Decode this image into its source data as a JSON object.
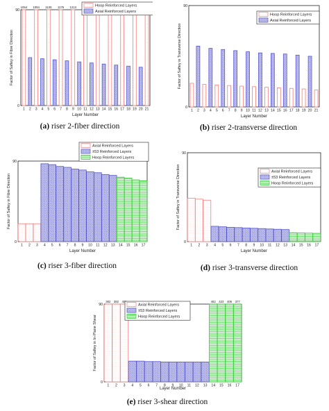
{
  "colors": {
    "hoop": "#f08080",
    "axial": "#5555cc",
    "pm53": "#5555cc",
    "hoop_green": "#33cc33",
    "axis": "#222222"
  },
  "chart_data": [
    {
      "id": "a",
      "type": "bar",
      "caption_letter": "(a)",
      "caption_text": " riser 2-fiber direction",
      "ylabel": "Factor of Saftey in Fibre Direction",
      "xlabel": "Layer Number",
      "ylim": [
        0,
        90
      ],
      "yticks": [
        0,
        90
      ],
      "categories": [
        "1",
        "2",
        "3",
        "4",
        "5",
        "6",
        "7",
        "8",
        "9",
        "10",
        "11",
        "12",
        "13",
        "14",
        "15",
        "16",
        "17",
        "18",
        "19",
        "20",
        "21"
      ],
      "values": [
        1054,
        45,
        1094,
        44,
        1135,
        43,
        1175,
        42,
        1213,
        41,
        1080,
        40,
        856,
        39,
        700,
        38,
        586,
        37,
        497,
        36,
        426
      ],
      "value_labels": [
        "1054",
        "",
        "1094",
        "",
        "1135",
        "",
        "1175",
        "",
        "1213",
        "",
        "1080",
        "",
        "856",
        "",
        "700",
        "",
        "586",
        "",
        "497",
        "",
        "426"
      ],
      "series_groups": [
        1,
        2,
        1,
        2,
        1,
        2,
        1,
        2,
        1,
        2,
        1,
        2,
        1,
        2,
        1,
        2,
        1,
        2,
        1,
        2,
        1
      ],
      "legend": [
        "Hoop Reinforced Layers",
        "Axial Reinforced Layers"
      ],
      "legend_styles": [
        "hoop",
        "axial"
      ],
      "legend_position": "top-right"
    },
    {
      "id": "b",
      "type": "bar",
      "caption_letter": "(b)",
      "caption_text": " riser 2-transverse direction",
      "ylabel": "Factor of Saftey in Transverse Direction",
      "xlabel": "Layer Number",
      "ylim": [
        0,
        90
      ],
      "yticks": [
        0,
        90
      ],
      "categories": [
        "1",
        "2",
        "3",
        "4",
        "5",
        "6",
        "7",
        "8",
        "9",
        "10",
        "11",
        "12",
        "13",
        "14",
        "15",
        "16",
        "17",
        "18",
        "19",
        "20",
        "21"
      ],
      "values": [
        21,
        54,
        20,
        52,
        19.5,
        51,
        19,
        50,
        18.5,
        49,
        18,
        48,
        17.5,
        47.5,
        17,
        47,
        16.5,
        46,
        16,
        45,
        15
      ],
      "series_groups": [
        1,
        2,
        1,
        2,
        1,
        2,
        1,
        2,
        1,
        2,
        1,
        2,
        1,
        2,
        1,
        2,
        1,
        2,
        1,
        2,
        1
      ],
      "legend": [
        "Hoop Reinforced Layers",
        "Axial Reinforced Layers"
      ],
      "legend_styles": [
        "hoop",
        "axial"
      ],
      "legend_position": "top-right"
    },
    {
      "id": "c",
      "type": "bar",
      "caption_letter": "(c)",
      "caption_text": " riser 3-fiber direction",
      "ylabel": "Factor of Saftey in Fibre Direction",
      "xlabel": "Layer Number",
      "ylim": [
        0,
        90
      ],
      "yticks": [
        0,
        90
      ],
      "categories": [
        "1",
        "2",
        "3",
        "4",
        "5",
        "6",
        "7",
        "8",
        "9",
        "10",
        "11",
        "12",
        "13",
        "14",
        "15",
        "16",
        "17"
      ],
      "values": [
        20,
        20,
        20,
        87,
        86,
        84,
        83,
        81,
        80,
        78,
        77,
        75,
        74,
        72,
        71,
        69,
        68
      ],
      "series_groups": [
        1,
        1,
        1,
        2,
        2,
        2,
        2,
        2,
        2,
        2,
        2,
        2,
        2,
        3,
        3,
        3,
        3
      ],
      "legend": [
        "Axial Reinforced Layers",
        "±53  Reinforced Layers",
        "Hoop Reinforced Layers"
      ],
      "legend_styles": [
        "hoop",
        "pm53",
        "hoop_green"
      ],
      "legend_position": "top-right"
    },
    {
      "id": "d",
      "type": "bar",
      "caption_letter": "(d)",
      "caption_text": " riser 3-transverse direction",
      "ylabel": "Factor of Saftey in Transverse Direction",
      "xlabel": "Layer Number",
      "ylim": [
        0,
        90
      ],
      "yticks": [
        0,
        90
      ],
      "categories": [
        "1",
        "2",
        "3",
        "4",
        "5",
        "6",
        "7",
        "8",
        "9",
        "10",
        "11",
        "12",
        "13",
        "14",
        "15",
        "16",
        "17"
      ],
      "values": [
        44,
        43,
        42,
        15.5,
        15,
        14.5,
        14.2,
        13.8,
        13.5,
        13.2,
        12.8,
        12.5,
        12.2,
        9,
        8.8,
        8.6,
        8.4
      ],
      "series_groups": [
        1,
        1,
        1,
        2,
        2,
        2,
        2,
        2,
        2,
        2,
        2,
        2,
        2,
        3,
        3,
        3,
        3
      ],
      "legend": [
        "Axial Reinforced Layers",
        "±53  Reinforced Layers",
        "Hoop Reinforced Layers"
      ],
      "legend_styles": [
        "hoop",
        "pm53",
        "hoop_green"
      ],
      "legend_position": "top-right"
    },
    {
      "id": "e",
      "type": "bar",
      "caption_letter": "(e)",
      "caption_text": " riser 3-shear direction",
      "ylabel": "Factor of Saftey in In-Plane Shear",
      "xlabel": "Layer Number",
      "ylim": [
        0,
        90
      ],
      "yticks": [
        0,
        90
      ],
      "categories": [
        "1",
        "2",
        "3",
        "4",
        "5",
        "6",
        "7",
        "8",
        "9",
        "10",
        "11",
        "12",
        "13",
        "14",
        "15",
        "16",
        "17"
      ],
      "values": [
        382,
        382,
        401,
        24,
        24,
        23.5,
        23.5,
        23,
        23,
        23,
        23,
        23,
        23,
        452,
        423,
        405,
        377
      ],
      "value_labels": [
        "382",
        "382",
        "401",
        "",
        "",
        "",
        "",
        "",
        "",
        "",
        "",
        "",
        "",
        "452",
        "423",
        "405",
        "377"
      ],
      "series_groups": [
        1,
        1,
        1,
        2,
        2,
        2,
        2,
        2,
        2,
        2,
        2,
        2,
        2,
        3,
        3,
        3,
        3
      ],
      "legend": [
        "Axial Reinforced Layers",
        "±53  Reinforced Layers",
        "Hoop Reinforced Layers"
      ],
      "legend_styles": [
        "hoop",
        "pm53",
        "hoop_green"
      ],
      "legend_position": "top-right"
    }
  ]
}
